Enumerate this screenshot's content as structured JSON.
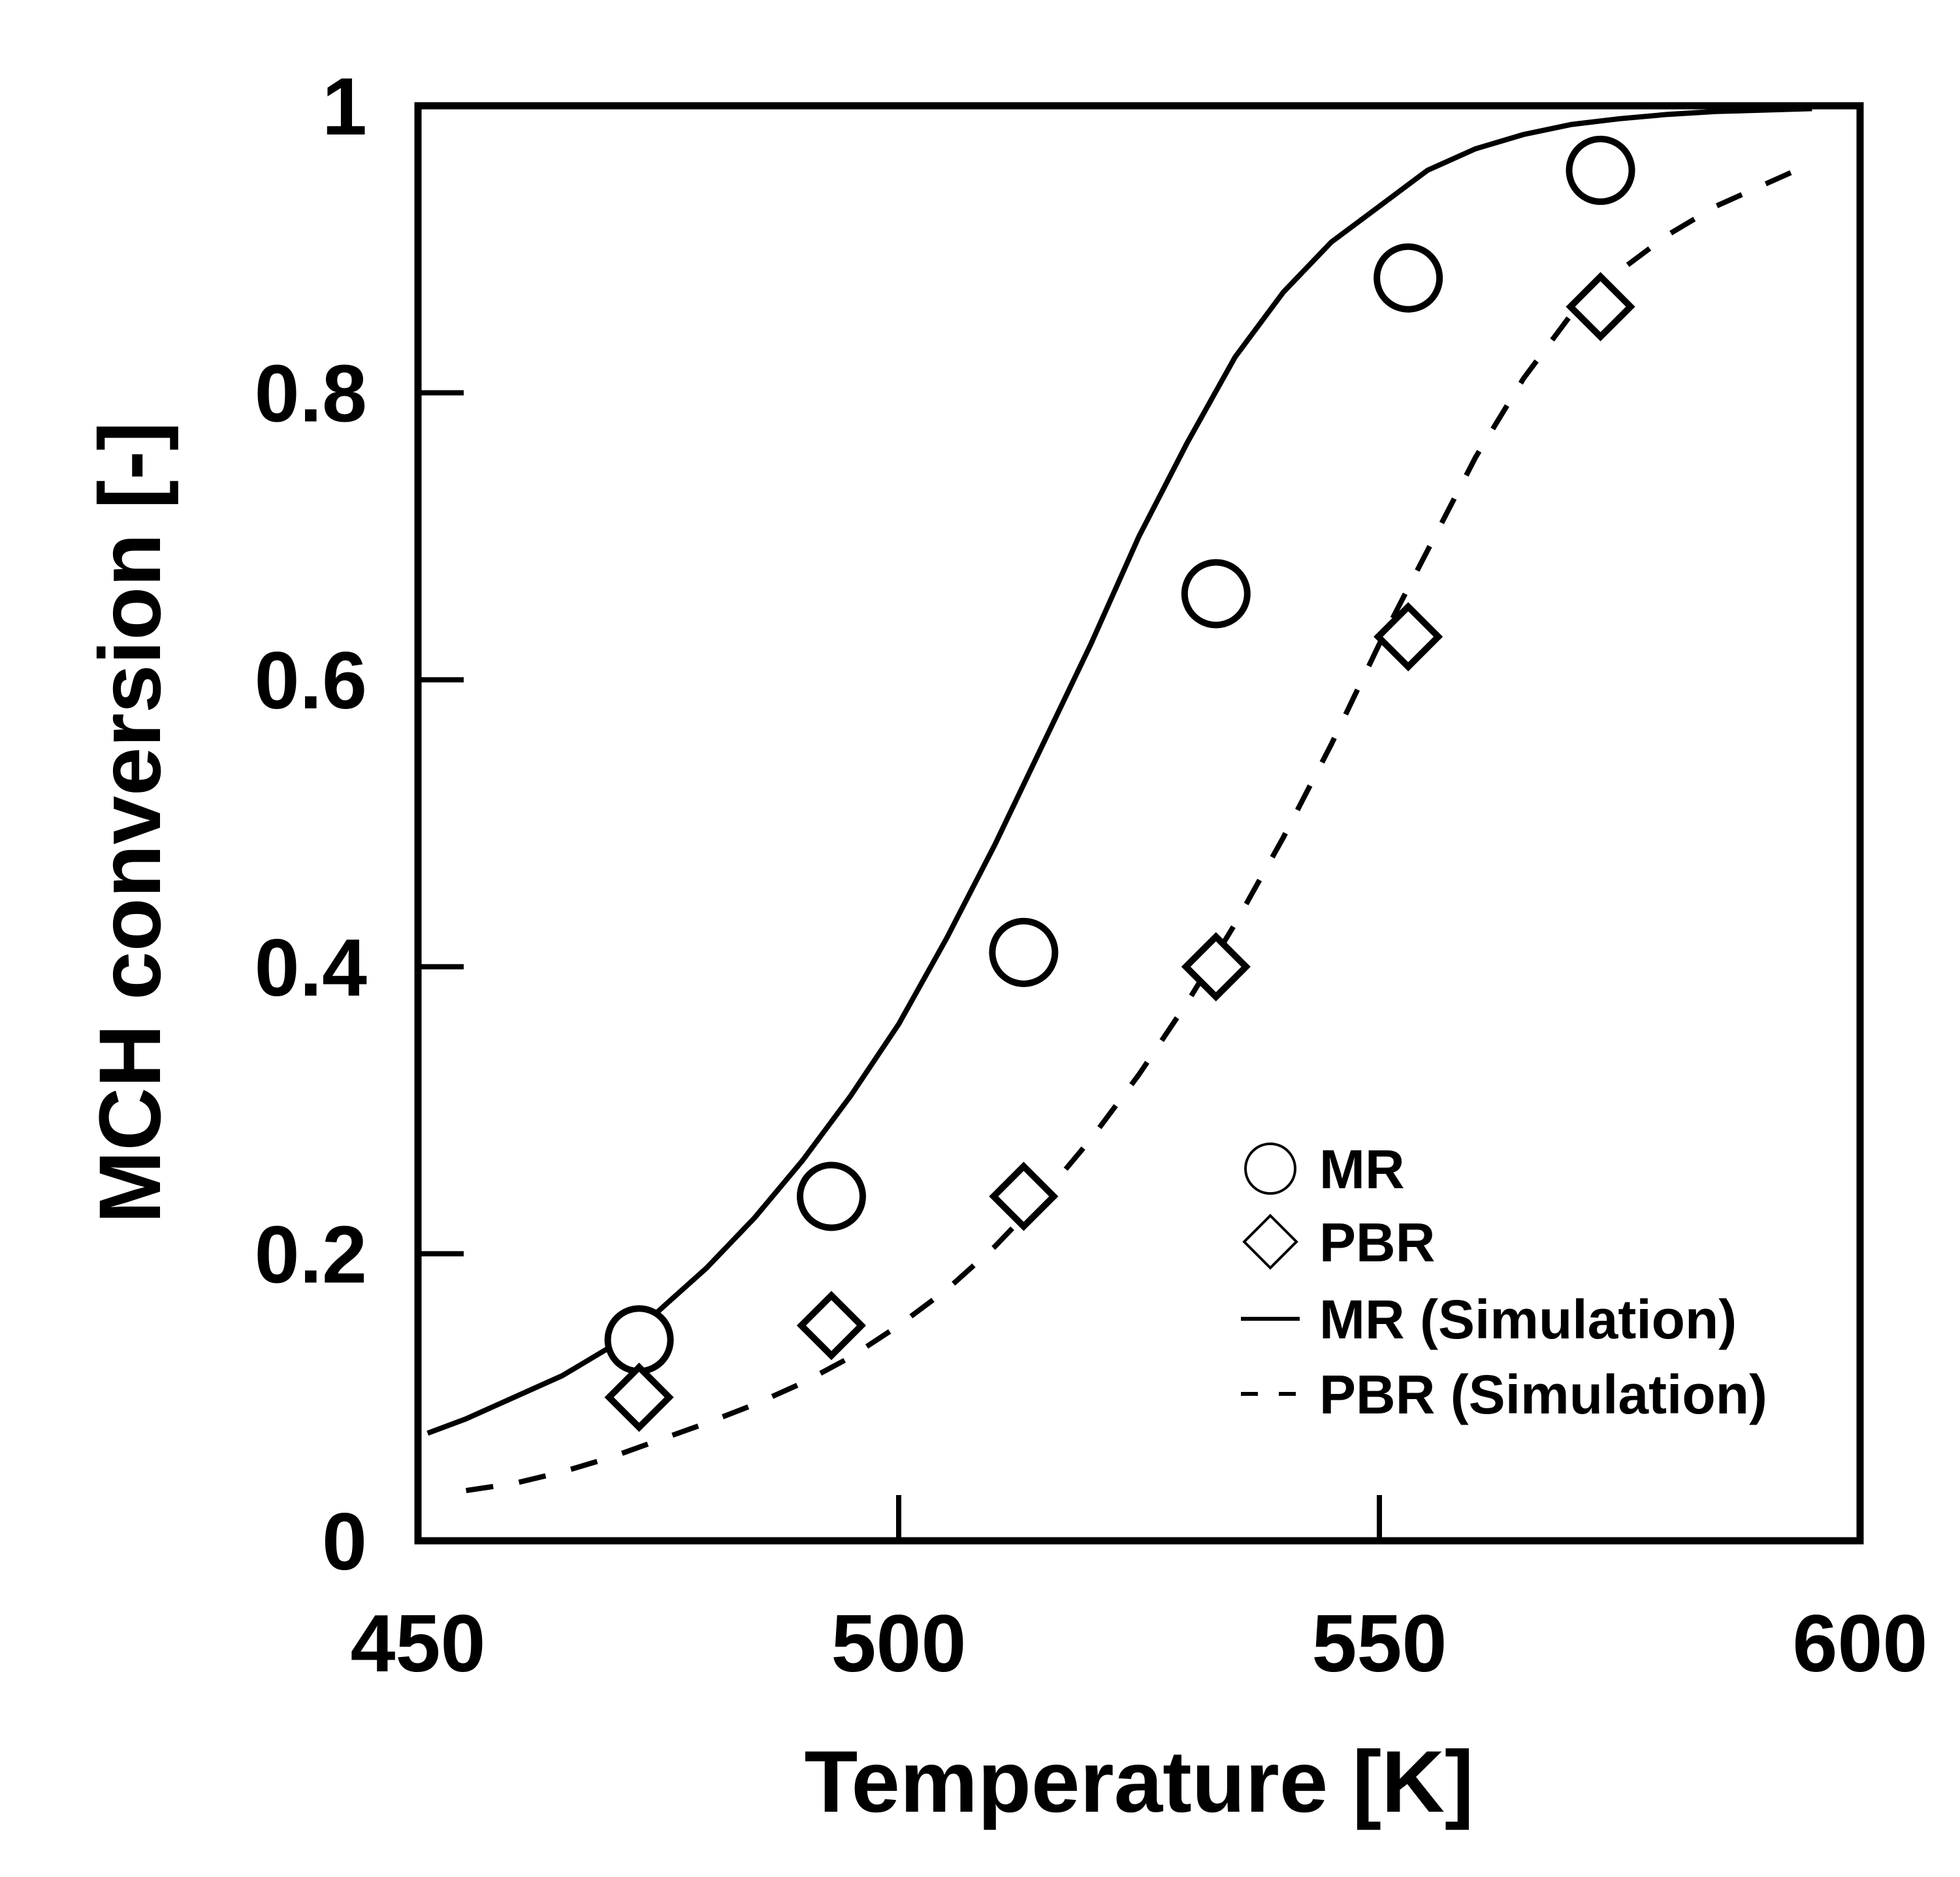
{
  "chart_data": {
    "type": "scatter",
    "title": "",
    "xlabel": "Temperature [K]",
    "ylabel": "MCH conversion [-]",
    "xlim": [
      450,
      600
    ],
    "ylim": [
      0,
      1
    ],
    "xticks": [
      450,
      500,
      550,
      600
    ],
    "yticks": [
      0,
      0.2,
      0.4,
      0.6,
      0.8,
      1
    ],
    "xtick_labels": [
      "450",
      "500",
      "550",
      "600"
    ],
    "ytick_labels": [
      "0",
      "0.2",
      "0.4",
      "0.6",
      "0.8",
      "1"
    ],
    "grid": false,
    "legend_position": "lower-right",
    "series": [
      {
        "name": "MR",
        "kind": "scatter",
        "marker": "circle",
        "x": [
          473,
          493,
          513,
          533,
          553,
          573
        ],
        "y": [
          0.14,
          0.24,
          0.41,
          0.66,
          0.88,
          0.955
        ]
      },
      {
        "name": "PBR",
        "kind": "scatter",
        "marker": "diamond",
        "x": [
          473,
          493,
          513,
          533,
          553,
          573
        ],
        "y": [
          0.1,
          0.15,
          0.24,
          0.4,
          0.63,
          0.86
        ]
      },
      {
        "name": "MR (Simulation)",
        "kind": "line",
        "style": "solid",
        "x": [
          451,
          455,
          460,
          465,
          470,
          475,
          480,
          485,
          490,
          495,
          500,
          505,
          510,
          515,
          520,
          525,
          530,
          535,
          540,
          545,
          550,
          555,
          560,
          565,
          570,
          575,
          580,
          585,
          590,
          595
        ],
        "y": [
          0.075,
          0.085,
          0.1,
          0.115,
          0.135,
          0.16,
          0.19,
          0.225,
          0.265,
          0.31,
          0.36,
          0.42,
          0.485,
          0.555,
          0.625,
          0.7,
          0.765,
          0.825,
          0.87,
          0.905,
          0.93,
          0.955,
          0.97,
          0.98,
          0.987,
          0.991,
          0.994,
          0.996,
          0.997,
          0.998
        ]
      },
      {
        "name": "PBR (Simulation)",
        "kind": "line",
        "style": "dashed",
        "x": [
          455,
          460,
          465,
          470,
          475,
          480,
          485,
          490,
          495,
          500,
          505,
          510,
          515,
          520,
          525,
          530,
          535,
          540,
          545,
          550,
          555,
          560,
          565,
          570,
          575,
          580,
          585,
          590,
          595
        ],
        "y": [
          0.035,
          0.04,
          0.048,
          0.058,
          0.07,
          0.082,
          0.095,
          0.11,
          0.128,
          0.15,
          0.175,
          0.205,
          0.24,
          0.28,
          0.325,
          0.375,
          0.43,
          0.49,
          0.555,
          0.625,
          0.69,
          0.755,
          0.81,
          0.855,
          0.885,
          0.91,
          0.93,
          0.945,
          0.96
        ]
      }
    ],
    "legend": [
      {
        "label": "MR",
        "symbol": "circle"
      },
      {
        "label": "PBR",
        "symbol": "diamond"
      },
      {
        "label": "MR (Simulation)",
        "symbol": "solid-line"
      },
      {
        "label": "PBR (Simulation)",
        "symbol": "dashed-line"
      }
    ]
  }
}
